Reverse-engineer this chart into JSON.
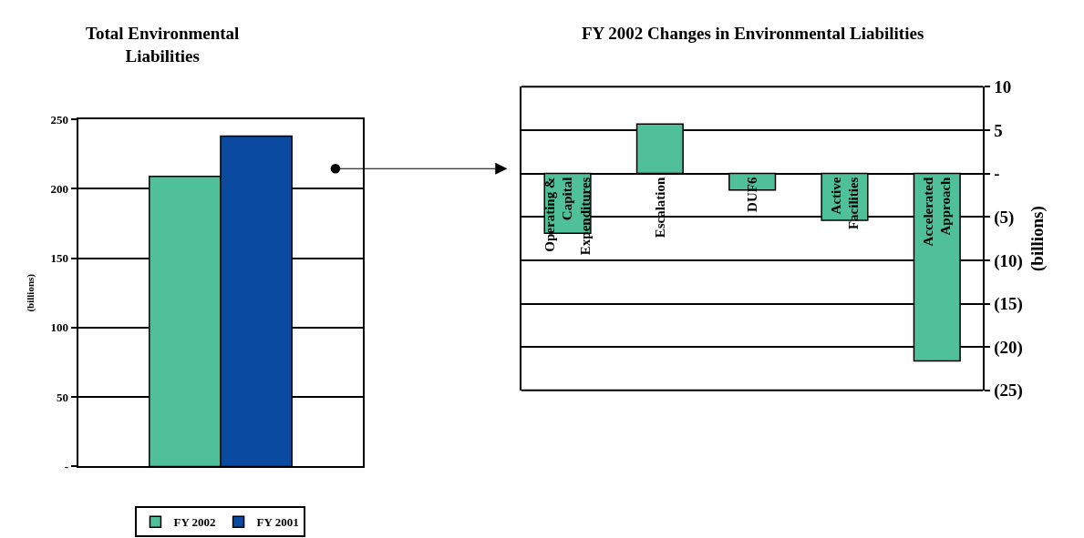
{
  "chart_data": [
    {
      "type": "bar",
      "title": "Total Environmental Liabilities",
      "ylabel": "(billions)",
      "categories": [
        null
      ],
      "series": [
        {
          "name": "FY 2002",
          "color": "#50c09a",
          "values": [
            209
          ]
        },
        {
          "name": "FY 2001",
          "color": "#0a4aa0",
          "values": [
            238
          ]
        }
      ],
      "ylim": [
        0,
        250
      ],
      "yticks": [
        {
          "value": 0,
          "label": "-"
        },
        50,
        100,
        150,
        200,
        250
      ],
      "grid": "y",
      "legend": "bottom"
    },
    {
      "type": "bar",
      "title": "FY 2002 Changes in Environmental Liabilities",
      "ylabel": "(billions)",
      "categories": [
        "Operating & Capital Expenditures",
        "Escalation",
        "DUF6",
        "Active Facilities",
        "Accelerated Approach"
      ],
      "series": [
        {
          "color": "#50c09a",
          "values": [
            -6.9,
            5.7,
            -1.9,
            -5.4,
            -21.6
          ]
        }
      ],
      "ylim": [
        -25,
        10
      ],
      "yticks": [
        {
          "value": -25,
          "label": "(25)"
        },
        {
          "value": -20,
          "label": "(20)"
        },
        {
          "value": -15,
          "label": "(15)"
        },
        {
          "value": -10,
          "label": "(10)"
        },
        {
          "value": -5,
          "label": "(5)"
        },
        {
          "value": 0,
          "label": "-"
        },
        5,
        10
      ],
      "grid": "y"
    }
  ]
}
